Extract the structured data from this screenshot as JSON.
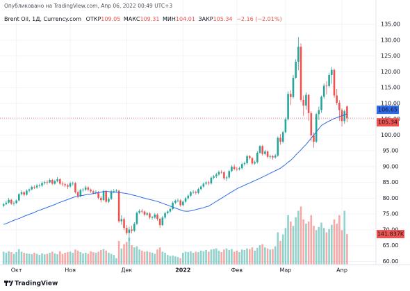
{
  "chart_data": {
    "type": "candlestick",
    "published": "Опубликовано на TradingView.com, Апр 06, 2022 00:49 UTC+3",
    "symbol": "Brent Oil, 1Д, Currency.com",
    "ohlc_labels": [
      "ОТКР",
      "МАКС",
      "МИН",
      "ЗАКР"
    ],
    "change": "−2.16 (−2.01%)",
    "brand": "TradingView",
    "up_color": "#26a69a",
    "down_color": "#ef5350",
    "grid": true,
    "ylim": [
      59,
      137
    ],
    "xlim": [
      -1.4,
      145
    ],
    "yticks": [
      {
        "value": 60,
        "label": "60.00"
      },
      {
        "value": 65,
        "label": "65.00"
      },
      {
        "value": 70,
        "label": "70.00"
      },
      {
        "value": 75,
        "label": "75.00"
      },
      {
        "value": 80,
        "label": "80.00"
      },
      {
        "value": 85,
        "label": "85.00"
      },
      {
        "value": 90,
        "label": "90.00"
      },
      {
        "value": 95,
        "label": "95.00"
      },
      {
        "value": 100,
        "label": "100.00"
      },
      {
        "value": 105,
        "label": "105.00"
      },
      {
        "value": 110,
        "label": "110.00"
      },
      {
        "value": 115,
        "label": "115.00"
      },
      {
        "value": 120,
        "label": "120.00"
      },
      {
        "value": 125,
        "label": "125.00"
      },
      {
        "value": 130,
        "label": "130.00"
      },
      {
        "value": 135,
        "label": "135.00"
      }
    ],
    "xticks": [
      {
        "value": 5,
        "label": "Окт"
      },
      {
        "value": 26,
        "label": "Ноя"
      },
      {
        "value": 48,
        "label": "Дек"
      },
      {
        "value": 70,
        "label": "2022"
      },
      {
        "value": 91,
        "label": "Фев"
      },
      {
        "value": 110,
        "label": "Мар"
      },
      {
        "value": 132,
        "label": "Апр"
      }
    ],
    "candles": [
      [
        77.6,
        78.6,
        77.2,
        78.1
      ],
      [
        78.1,
        79.2,
        77.8,
        78.6
      ],
      [
        78.6,
        80.1,
        78.3,
        79.5
      ],
      [
        79.5,
        79.8,
        77.9,
        78.3
      ],
      [
        78.3,
        79.0,
        77.6,
        78.5
      ],
      [
        78.5,
        79.6,
        78.2,
        79.3
      ],
      [
        79.3,
        81.6,
        79.0,
        81.3
      ],
      [
        81.3,
        82.5,
        80.9,
        81.9
      ],
      [
        81.9,
        82.2,
        80.6,
        81.1
      ],
      [
        81.1,
        82.8,
        80.8,
        82.4
      ],
      [
        82.4,
        83.1,
        81.8,
        82.8
      ],
      [
        82.8,
        84.0,
        82.5,
        83.6
      ],
      [
        83.6,
        84.1,
        82.9,
        83.4
      ],
      [
        83.4,
        84.5,
        83.0,
        84.0
      ],
      [
        84.0,
        84.6,
        83.4,
        84.0
      ],
      [
        84.0,
        85.3,
        83.6,
        84.8
      ],
      [
        84.8,
        85.6,
        84.2,
        85.1
      ],
      [
        85.1,
        85.7,
        84.3,
        85.0
      ],
      [
        85.0,
        86.3,
        84.7,
        85.8
      ],
      [
        85.8,
        86.1,
        84.2,
        84.6
      ],
      [
        84.6,
        85.9,
        84.3,
        85.4
      ],
      [
        85.4,
        86.7,
        85.0,
        86.0
      ],
      [
        86.0,
        86.4,
        84.2,
        84.6
      ],
      [
        84.6,
        85.3,
        83.8,
        84.4
      ],
      [
        84.4,
        84.9,
        83.5,
        84.1
      ],
      [
        84.1,
        84.6,
        82.9,
        83.7
      ],
      [
        83.7,
        85.2,
        83.3,
        84.7
      ],
      [
        84.7,
        85.3,
        84.0,
        84.8
      ],
      [
        84.8,
        85.1,
        81.5,
        81.9
      ],
      [
        81.9,
        82.4,
        80.0,
        80.6
      ],
      [
        80.6,
        83.0,
        80.3,
        82.6
      ],
      [
        82.6,
        83.2,
        82.0,
        82.7
      ],
      [
        82.7,
        84.0,
        82.3,
        83.4
      ],
      [
        83.4,
        83.8,
        82.2,
        82.7
      ],
      [
        82.7,
        83.1,
        81.7,
        82.2
      ],
      [
        82.2,
        82.6,
        81.2,
        81.7
      ],
      [
        81.7,
        82.5,
        81.3,
        81.9
      ],
      [
        81.9,
        82.3,
        79.6,
        80.1
      ],
      [
        80.1,
        80.7,
        78.7,
        79.4
      ],
      [
        79.4,
        82.7,
        79.1,
        82.3
      ],
      [
        82.3,
        82.6,
        78.5,
        78.9
      ],
      [
        78.9,
        80.3,
        78.5,
        79.8
      ],
      [
        79.8,
        82.6,
        79.4,
        82.2
      ],
      [
        82.2,
        82.9,
        81.6,
        82.3
      ],
      [
        82.3,
        82.9,
        81.8,
        82.4
      ],
      [
        82.4,
        82.5,
        72.2,
        72.7
      ],
      [
        72.7,
        74.6,
        71.6,
        73.4
      ],
      [
        73.4,
        73.9,
        69.9,
        70.6
      ],
      [
        70.6,
        71.5,
        68.4,
        69.0
      ],
      [
        69.0,
        71.0,
        66.5,
        70.1
      ],
      [
        70.1,
        71.3,
        68.9,
        69.7
      ],
      [
        69.7,
        72.4,
        69.3,
        71.9
      ],
      [
        71.9,
        75.8,
        71.5,
        75.4
      ],
      [
        75.4,
        76.5,
        75.0,
        76.0
      ],
      [
        76.0,
        76.6,
        75.2,
        75.8
      ],
      [
        75.8,
        76.1,
        74.3,
        74.8
      ],
      [
        74.8,
        75.7,
        74.4,
        75.2
      ],
      [
        75.2,
        75.6,
        73.4,
        73.9
      ],
      [
        73.9,
        74.4,
        73.2,
        73.9
      ],
      [
        73.9,
        75.3,
        73.5,
        74.8
      ],
      [
        74.8,
        75.2,
        72.9,
        73.5
      ],
      [
        73.5,
        73.8,
        70.6,
        71.5
      ],
      [
        71.5,
        74.4,
        71.2,
        73.9
      ],
      [
        73.9,
        75.7,
        73.5,
        75.3
      ],
      [
        75.3,
        76.2,
        74.9,
        75.8
      ],
      [
        75.8,
        77.0,
        75.4,
        76.6
      ],
      [
        76.6,
        79.0,
        76.2,
        78.6
      ],
      [
        78.6,
        79.6,
        78.1,
        79.2
      ],
      [
        79.2,
        79.9,
        78.7,
        79.3
      ],
      [
        79.3,
        79.7,
        77.3,
        77.8
      ],
      [
        77.8,
        79.3,
        77.4,
        78.9
      ],
      [
        78.9,
        80.4,
        78.5,
        80.0
      ],
      [
        80.0,
        81.2,
        79.6,
        80.8
      ],
      [
        80.8,
        82.3,
        80.4,
        81.9
      ],
      [
        81.9,
        82.6,
        81.4,
        82.0
      ],
      [
        82.0,
        82.4,
        81.1,
        81.7
      ],
      [
        81.7,
        83.3,
        81.3,
        82.9
      ],
      [
        82.9,
        84.1,
        82.5,
        83.7
      ],
      [
        83.7,
        85.0,
        83.3,
        84.6
      ],
      [
        84.6,
        85.4,
        84.2,
        85.0
      ],
      [
        85.0,
        85.5,
        84.1,
        84.7
      ],
      [
        84.7,
        86.9,
        84.3,
        86.5
      ],
      [
        86.5,
        87.4,
        86.0,
        86.9
      ],
      [
        86.9,
        88.0,
        86.4,
        87.5
      ],
      [
        87.5,
        88.8,
        87.1,
        88.3
      ],
      [
        88.3,
        88.9,
        87.7,
        88.2
      ],
      [
        88.2,
        88.6,
        85.8,
        86.3
      ],
      [
        86.3,
        87.1,
        85.4,
        86.6
      ],
      [
        86.6,
        89.0,
        86.2,
        88.6
      ],
      [
        88.6,
        90.5,
        88.2,
        90.0
      ],
      [
        90.0,
        90.7,
        88.8,
        89.3
      ],
      [
        89.3,
        89.9,
        88.6,
        89.2
      ],
      [
        89.2,
        90.0,
        88.8,
        89.5
      ],
      [
        89.5,
        91.3,
        89.1,
        90.8
      ],
      [
        90.8,
        91.6,
        90.3,
        91.1
      ],
      [
        91.1,
        93.8,
        90.7,
        93.3
      ],
      [
        93.3,
        93.7,
        92.2,
        92.7
      ],
      [
        92.7,
        93.0,
        90.5,
        91.0
      ],
      [
        91.0,
        91.9,
        90.6,
        91.4
      ],
      [
        91.4,
        94.9,
        91.0,
        94.4
      ],
      [
        94.4,
        96.8,
        94.0,
        96.5
      ],
      [
        96.5,
        96.9,
        93.5,
        94.0
      ],
      [
        94.0,
        95.3,
        93.6,
        94.8
      ],
      [
        94.8,
        95.1,
        92.6,
        93.1
      ],
      [
        93.1,
        93.8,
        92.5,
        93.3
      ],
      [
        93.3,
        93.7,
        92.2,
        92.9
      ],
      [
        92.9,
        94.0,
        92.5,
        93.5
      ],
      [
        93.5,
        99.6,
        93.1,
        99.1
      ],
      [
        99.1,
        100.3,
        96.9,
        97.9
      ],
      [
        97.9,
        101.3,
        97.4,
        100.9
      ],
      [
        100.9,
        105.6,
        100.5,
        105.0
      ],
      [
        105.0,
        113.8,
        104.6,
        113.0
      ],
      [
        113.0,
        114.1,
        109.5,
        112.0
      ],
      [
        112.0,
        119.0,
        111.5,
        118.1
      ],
      [
        118.1,
        124.0,
        117.8,
        123.2
      ],
      [
        123.2,
        131.0,
        120.5,
        127.9
      ],
      [
        127.9,
        129.0,
        110.5,
        111.1
      ],
      [
        111.1,
        112.5,
        106.0,
        109.3
      ],
      [
        109.3,
        113.5,
        108.0,
        112.7
      ],
      [
        112.7,
        113.0,
        104.5,
        106.9
      ],
      [
        106.9,
        107.5,
        98.0,
        99.9
      ],
      [
        99.9,
        100.8,
        96.0,
        97.9
      ],
      [
        97.9,
        107.0,
        97.5,
        106.6
      ],
      [
        106.6,
        109.0,
        104.7,
        107.9
      ],
      [
        107.9,
        112.5,
        107.0,
        112.1
      ],
      [
        112.1,
        116.3,
        111.5,
        115.6
      ],
      [
        115.6,
        117.0,
        112.8,
        115.5
      ],
      [
        115.5,
        119.7,
        115.0,
        119.0
      ],
      [
        119.0,
        121.6,
        116.2,
        120.6
      ],
      [
        120.6,
        121.0,
        111.8,
        112.5
      ],
      [
        112.5,
        114.6,
        109.5,
        110.2
      ],
      [
        110.2,
        111.0,
        104.5,
        107.9
      ],
      [
        107.9,
        108.4,
        102.7,
        104.4
      ],
      [
        104.4,
        108.0,
        103.5,
        107.5
      ],
      [
        109.05,
        109.31,
        104.01,
        105.34
      ]
    ],
    "ma": {
      "color": "#2f6be8",
      "values": [
        71.7,
        72.0,
        72.3,
        72.7,
        73.0,
        73.3,
        73.6,
        73.9,
        74.3,
        74.6,
        74.9,
        75.2,
        75.5,
        75.9,
        76.2,
        76.5,
        76.8,
        77.1,
        77.4,
        77.7,
        78.0,
        78.4,
        78.7,
        79.0,
        79.3,
        79.6,
        79.9,
        80.2,
        80.5,
        80.6,
        80.8,
        80.9,
        81.1,
        81.2,
        81.3,
        81.5,
        81.6,
        81.8,
        81.9,
        82.1,
        82.2,
        82.1,
        82.0,
        81.9,
        81.9,
        81.8,
        81.7,
        81.6,
        81.5,
        81.3,
        81.1,
        80.9,
        80.7,
        80.5,
        80.2,
        80.0,
        79.8,
        79.6,
        79.4,
        79.2,
        79.0,
        78.7,
        78.4,
        78.1,
        77.8,
        77.5,
        77.2,
        76.9,
        76.6,
        76.3,
        76.0,
        75.9,
        75.9,
        76.0,
        76.2,
        76.4,
        76.6,
        76.8,
        77.0,
        77.3,
        77.5,
        78.0,
        78.5,
        79.0,
        79.5,
        80.0,
        80.5,
        81.0,
        81.5,
        82.0,
        82.5,
        83.0,
        83.4,
        83.7,
        84.1,
        84.5,
        84.8,
        85.2,
        85.6,
        85.9,
        86.3,
        86.7,
        87.1,
        87.5,
        87.9,
        88.3,
        88.7,
        89.1,
        89.5,
        90.1,
        90.7,
        91.4,
        92.0,
        92.8,
        93.7,
        94.5,
        95.3,
        96.2,
        97.0,
        98.0,
        99.0,
        100.0,
        101.0,
        102.0,
        103.0,
        103.5,
        104.0,
        104.4,
        104.8,
        105.2,
        105.5,
        105.8,
        106.1,
        106.4,
        106.65
      ]
    },
    "volume": {
      "ylim": [
        0,
        300
      ],
      "last_label": "141.837K",
      "values": [
        60,
        55,
        62,
        58,
        50,
        58,
        72,
        60,
        55,
        52,
        50,
        48,
        55,
        50,
        45,
        52,
        48,
        50,
        55,
        60,
        52,
        48,
        62,
        50,
        55,
        58,
        60,
        55,
        70,
        65,
        58,
        52,
        55,
        50,
        62,
        58,
        55,
        60,
        68,
        72,
        65,
        55,
        50,
        45,
        30,
        110,
        75,
        95,
        105,
        125,
        90,
        80,
        85,
        70,
        65,
        60,
        62,
        58,
        55,
        50,
        70,
        80,
        60,
        55,
        45,
        40,
        42,
        38,
        35,
        30,
        55,
        60,
        58,
        62,
        55,
        60,
        58,
        65,
        62,
        68,
        60,
        70,
        72,
        75,
        65,
        58,
        70,
        75,
        68,
        72,
        60,
        65,
        58,
        70,
        68,
        75,
        72,
        80,
        65,
        78,
        90,
        95,
        80,
        75,
        70,
        72,
        85,
        150,
        110,
        140,
        170,
        230,
        200,
        180,
        220,
        250,
        270,
        210,
        190,
        200,
        230,
        180,
        160,
        175,
        195,
        170,
        150,
        165,
        185,
        210,
        190,
        230,
        160,
        250,
        141.837
      ]
    }
  }
}
